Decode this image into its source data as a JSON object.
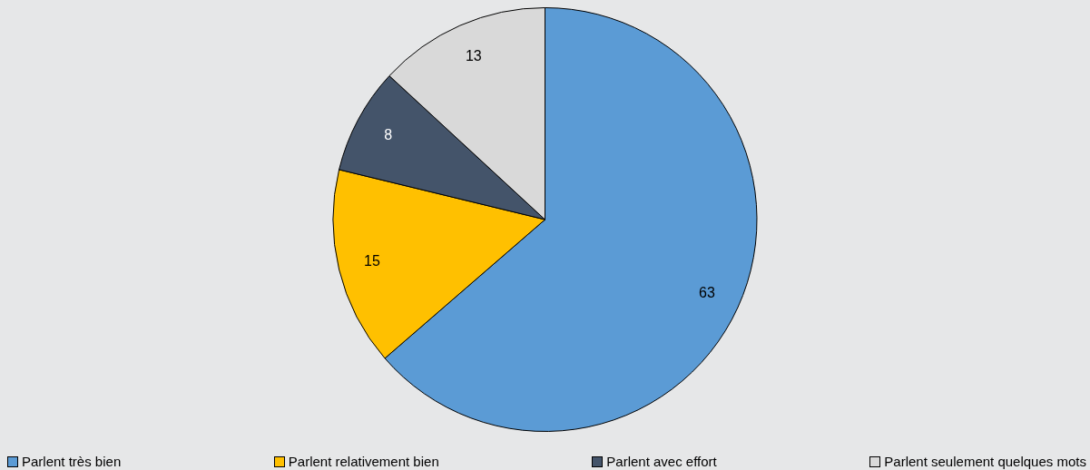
{
  "chart_data": {
    "type": "pie",
    "categories": [
      "Parlent très bien",
      "Parlent relativement bien",
      "Parlent avec effort",
      "Parlent seulement quelques mots"
    ],
    "values": [
      63,
      15,
      8,
      13
    ],
    "colors": [
      "#5b9bd5",
      "#ffc000",
      "#44546a",
      "#d9d9d9"
    ],
    "data_labels": true,
    "legend": "bottom"
  }
}
